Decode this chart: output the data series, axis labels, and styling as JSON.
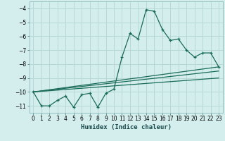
{
  "title": "",
  "xlabel": "Humidex (Indice chaleur)",
  "ylabel": "",
  "background_color": "#d4eeee",
  "grid_color": "#b8d8d8",
  "line_color": "#1a6b5a",
  "xlim": [
    -0.5,
    23.5
  ],
  "ylim": [
    -11.5,
    -3.5
  ],
  "yticks": [
    -11,
    -10,
    -9,
    -8,
    -7,
    -6,
    -5,
    -4
  ],
  "xticks": [
    0,
    1,
    2,
    3,
    4,
    5,
    6,
    7,
    8,
    9,
    10,
    11,
    12,
    13,
    14,
    15,
    16,
    17,
    18,
    19,
    20,
    21,
    22,
    23
  ],
  "x_main": [
    0,
    1,
    2,
    3,
    4,
    5,
    6,
    7,
    8,
    9,
    10,
    11,
    12,
    13,
    14,
    15,
    16,
    17,
    18,
    19,
    20,
    21,
    22,
    23
  ],
  "y_main": [
    -10.0,
    -11.0,
    -11.0,
    -10.6,
    -10.3,
    -11.1,
    -10.2,
    -10.1,
    -11.1,
    -10.1,
    -9.8,
    -7.5,
    -5.8,
    -6.2,
    -4.1,
    -4.2,
    -5.5,
    -6.3,
    -6.2,
    -7.0,
    -7.5,
    -7.2,
    -7.2,
    -8.2
  ],
  "trend1_x": [
    0,
    23
  ],
  "trend1_y": [
    -10.0,
    -8.2
  ],
  "trend2_x": [
    0,
    23
  ],
  "trend2_y": [
    -10.0,
    -8.5
  ],
  "trend3_x": [
    0,
    23
  ],
  "trend3_y": [
    -10.0,
    -9.0
  ]
}
